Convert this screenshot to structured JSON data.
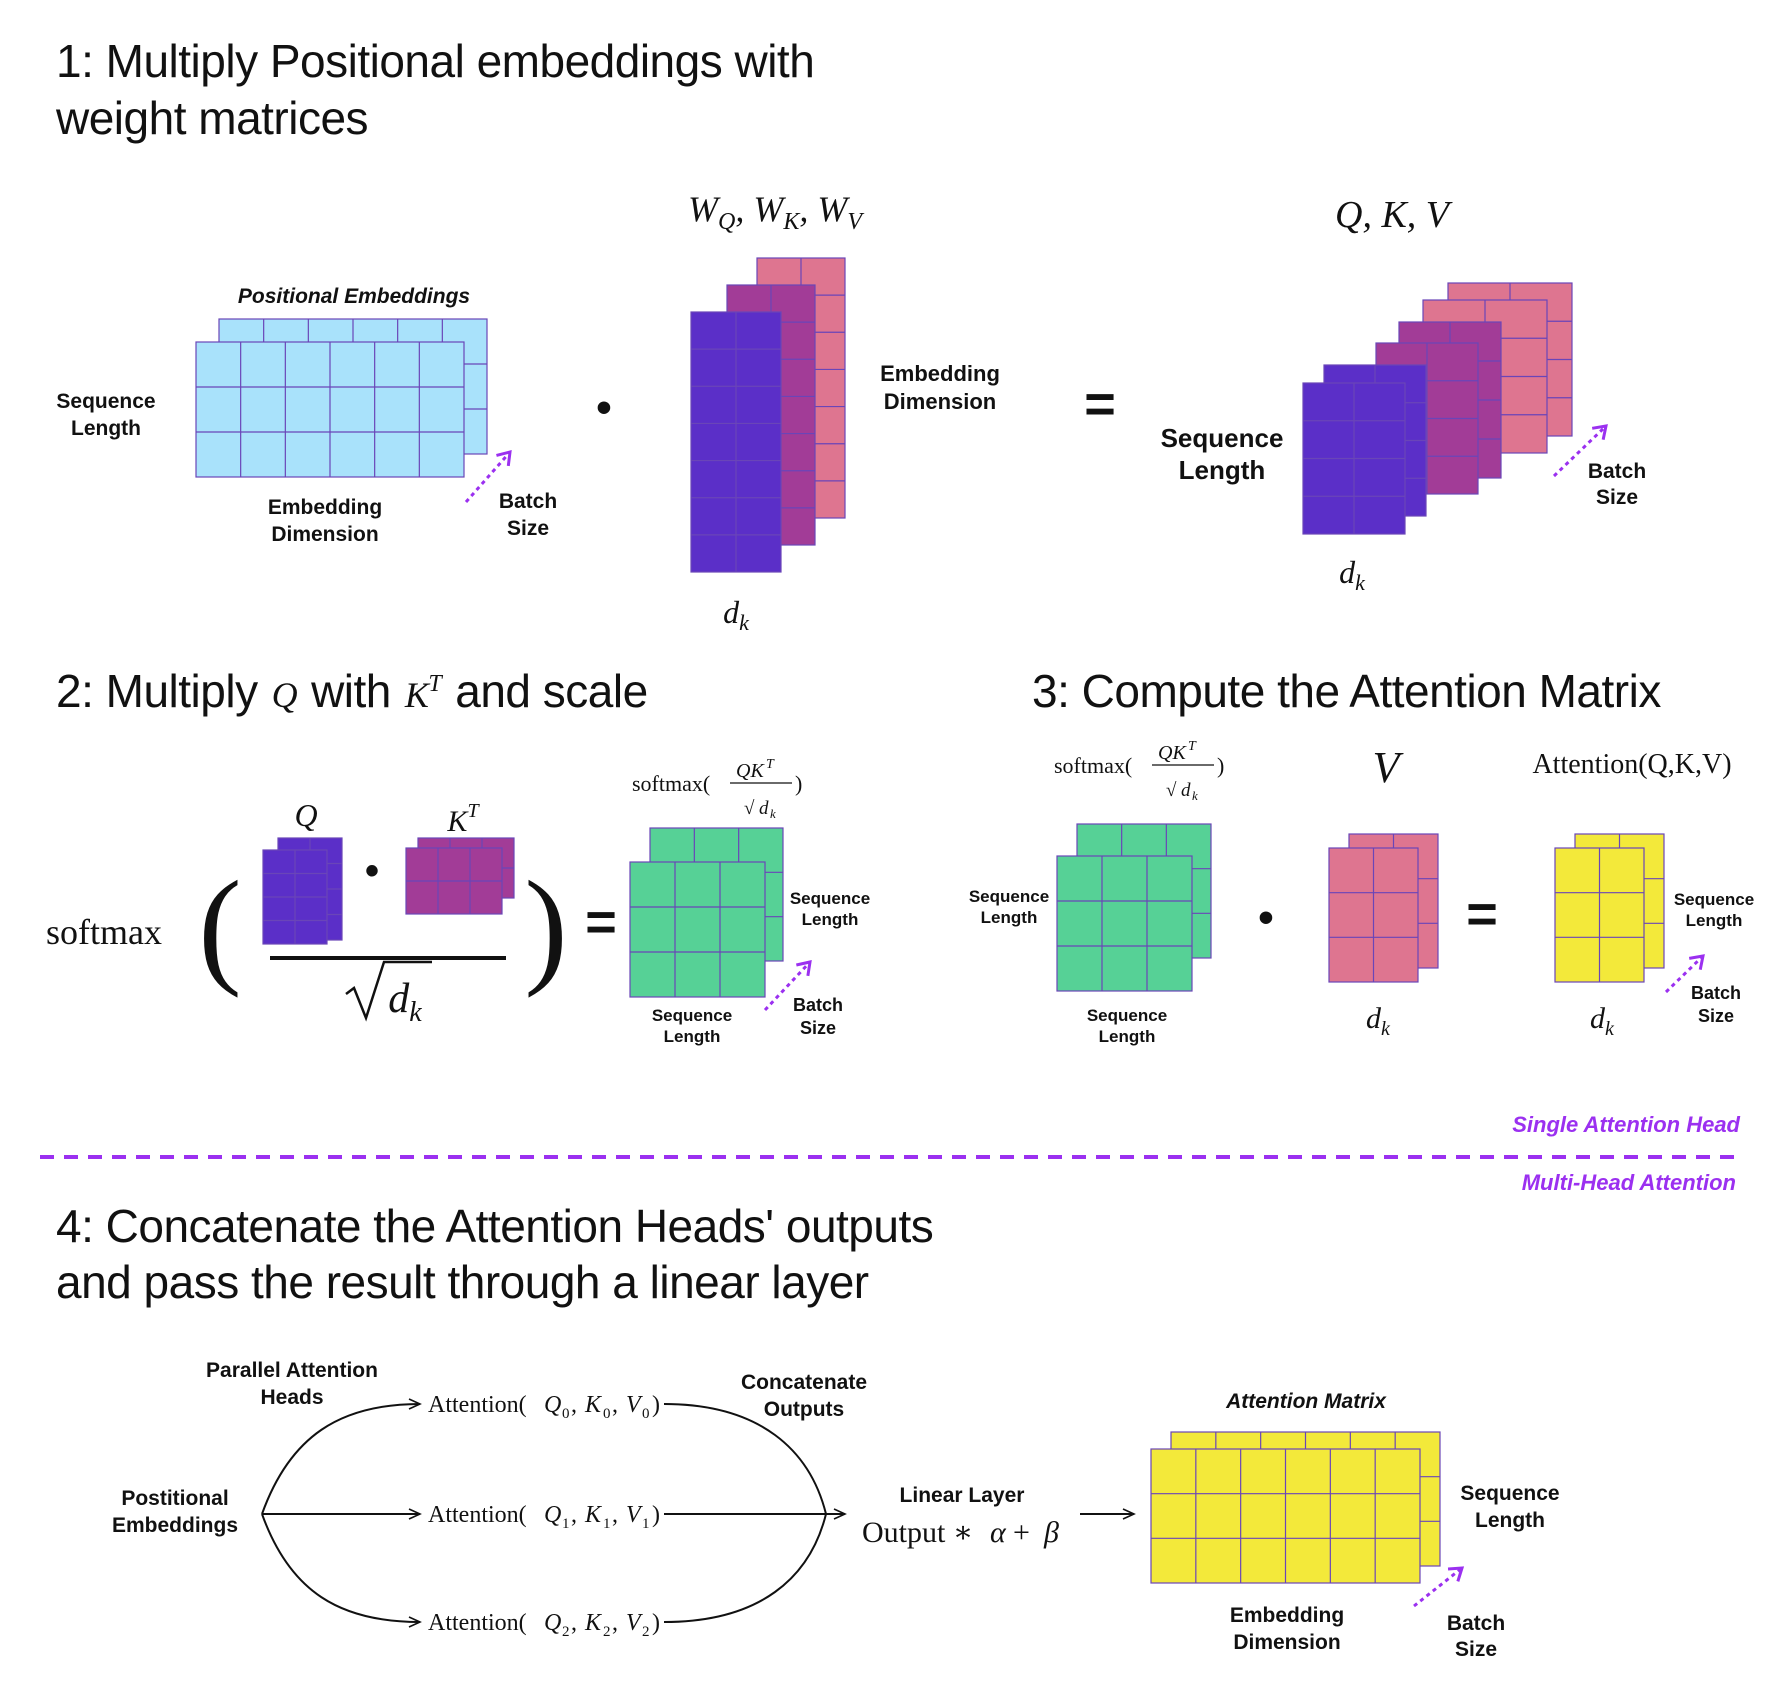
{
  "colors": {
    "light_blue": "#a9e2fb",
    "indigo": "#5b2fc8",
    "magenta": "#a23c97",
    "pink": "#de7590",
    "green": "#56d196",
    "yellow": "#f3e93a",
    "grid_line": "#6a45b8",
    "divider": "#9b30f0"
  },
  "step1": {
    "title_line1": "1: Multiply Positional embeddings with",
    "title_line2": "weight matrices",
    "positional_embeddings_label": "Positional Embeddings",
    "sequence_length_1": "Sequence",
    "sequence_length_2": "Length",
    "embedding_dimension_1": "Embedding",
    "embedding_dimension_2": "Dimension",
    "batch_1": "Batch",
    "batch_2": "Size",
    "dot": "•",
    "weights_label": "W_Q, W_K, W_V",
    "weights_dim_1": "Embedding",
    "weights_dim_2": "Dimension",
    "weights_dk": "d_k",
    "equals": "=",
    "qkv_label": "Q, K, V",
    "qkv_seq_1": "Sequence",
    "qkv_seq_2": "Length",
    "qkv_dk": "d_k",
    "qkv_batch_1": "Batch",
    "qkv_batch_2": "Size"
  },
  "step2": {
    "title_a": "2: Multiply",
    "title_q": "Q",
    "title_b": "with",
    "title_k": "K",
    "title_t": "T",
    "title_c": "and scale",
    "softmax": "softmax",
    "q_label": "Q",
    "kt_label": "K",
    "kt_sup": "T",
    "dot": "•",
    "sqrt_dk": "d_k",
    "equals": "=",
    "result_formula": "softmax(QK^T/√d_k)",
    "seq_right_1": "Sequence",
    "seq_right_2": "Length",
    "seq_bottom_1": "Sequence",
    "seq_bottom_2": "Length",
    "batch_1": "Batch",
    "batch_2": "Size"
  },
  "step3": {
    "title": "3: Compute the Attention Matrix",
    "softmax_formula": "softmax(QK^T/√d_k)",
    "v_label": "V",
    "attention_label": "Attention(Q,K,V)",
    "seq_left_1": "Sequence",
    "seq_left_2": "Length",
    "seq_bottom_1": "Sequence",
    "seq_bottom_2": "Length",
    "dot": "•",
    "v_dk": "d_k",
    "equals": "=",
    "out_seq_1": "Sequence",
    "out_seq_2": "Length",
    "out_dk": "d_k",
    "batch_1": "Batch",
    "batch_2": "Size"
  },
  "divider": {
    "single_head": "Single Attention Head",
    "multi_head": "Multi-Head Attention"
  },
  "step4": {
    "title_line1": "4: Concatenate the Attention Heads' outputs",
    "title_line2": "and pass the result through a linear layer",
    "parallel_1": "Parallel Attention",
    "parallel_2": "Heads",
    "positional_1": "Postitional",
    "positional_2": "Embeddings",
    "heads": [
      "Attention(Q_0, K_0, V_0)",
      "Attention(Q_1, K_1, V_1)",
      "Attention(Q_2, K_2, V_2)"
    ],
    "concat_1": "Concatenate",
    "concat_2": "Outputs",
    "linear_layer": "Linear Layer",
    "linear_formula": "Output ∗ α + β",
    "attention_matrix_label": "Attention Matrix",
    "seq_1": "Sequence",
    "seq_2": "Length",
    "emb_1": "Embedding",
    "emb_2": "Dimension",
    "batch_1": "Batch",
    "batch_2": "Size"
  }
}
